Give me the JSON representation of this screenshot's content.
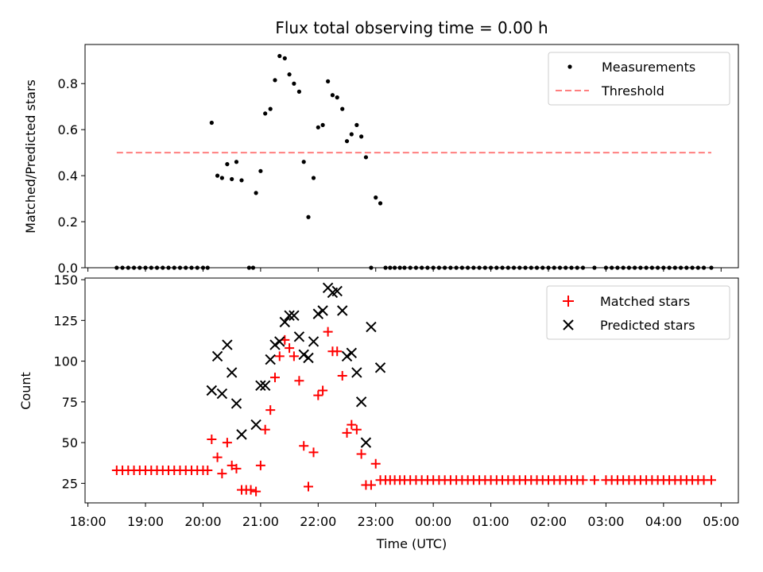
{
  "chart_data": [
    {
      "type": "scatter",
      "title": "Flux total observing time = 0.00 h",
      "xlabel": "",
      "ylabel": "Matched/Predicted stars",
      "ylim": [
        0,
        0.97
      ],
      "yticks": [
        "0.0",
        "0.2",
        "0.4",
        "0.6",
        "0.8"
      ],
      "ytick_values": [
        0,
        0.2,
        0.4,
        0.6,
        0.8
      ],
      "legend_position": "top-right",
      "threshold": {
        "name": "Threshold",
        "value": 0.5,
        "x_start": 18.5,
        "x_end": 28.83,
        "color": "#ff7f7f"
      },
      "series": [
        {
          "name": "Measurements",
          "color": "#000000",
          "x": [
            18.5,
            18.6,
            18.7,
            18.8,
            18.9,
            19.0,
            19.1,
            19.2,
            19.3,
            19.4,
            19.5,
            19.6,
            19.7,
            19.8,
            19.9,
            20.0,
            20.08,
            20.15,
            20.25,
            20.33,
            20.42,
            20.5,
            20.58,
            20.67,
            20.8,
            20.87,
            20.92,
            21.0,
            21.08,
            21.17,
            21.25,
            21.33,
            21.42,
            21.5,
            21.58,
            21.67,
            21.75,
            21.83,
            21.92,
            22.0,
            22.08,
            22.17,
            22.25,
            22.33,
            22.42,
            22.5,
            22.58,
            22.67,
            22.75,
            22.83,
            22.92,
            23.0,
            23.08,
            23.17,
            23.25,
            23.33,
            23.42,
            23.5,
            23.6,
            23.7,
            23.8,
            23.9,
            24.0,
            24.1,
            24.2,
            24.3,
            24.4,
            24.5,
            24.6,
            24.7,
            24.8,
            24.9,
            25.0,
            25.1,
            25.2,
            25.3,
            25.4,
            25.5,
            25.6,
            25.7,
            25.8,
            25.9,
            26.0,
            26.1,
            26.2,
            26.3,
            26.4,
            26.5,
            26.6,
            26.8,
            27.0,
            27.1,
            27.2,
            27.3,
            27.4,
            27.5,
            27.6,
            27.7,
            27.8,
            27.9,
            28.0,
            28.1,
            28.2,
            28.3,
            28.4,
            28.5,
            28.6,
            28.7,
            28.83
          ],
          "y": [
            0,
            0,
            0,
            0,
            0,
            0,
            0,
            0,
            0,
            0,
            0,
            0,
            0,
            0,
            0,
            0,
            0,
            0.63,
            0.4,
            0.39,
            0.45,
            0.385,
            0.46,
            0.38,
            0,
            0,
            0.325,
            0.42,
            0.67,
            0.69,
            0.815,
            0.92,
            0.91,
            0.84,
            0.8,
            0.765,
            0.46,
            0.22,
            0.39,
            0.61,
            0.62,
            0.81,
            0.75,
            0.74,
            0.69,
            0.55,
            0.58,
            0.62,
            0.57,
            0.48,
            0,
            0.305,
            0.28,
            0,
            0,
            0,
            0,
            0,
            0,
            0,
            0,
            0,
            0,
            0,
            0,
            0,
            0,
            0,
            0,
            0,
            0,
            0,
            0,
            0,
            0,
            0,
            0,
            0,
            0,
            0,
            0,
            0,
            0,
            0,
            0,
            0,
            0,
            0,
            0,
            0,
            0,
            0,
            0,
            0,
            0,
            0,
            0,
            0,
            0,
            0,
            0,
            0,
            0,
            0,
            0,
            0,
            0,
            0,
            0
          ]
        }
      ]
    },
    {
      "type": "scatter",
      "title": "",
      "xlabel": "Time (UTC)",
      "ylabel": "Count",
      "xlim": [
        17.95,
        29.3
      ],
      "ylim": [
        13,
        151
      ],
      "yticks": [
        "25",
        "50",
        "75",
        "100",
        "125",
        "150"
      ],
      "ytick_values": [
        25,
        50,
        75,
        100,
        125,
        150
      ],
      "xticks": [
        "18:00",
        "19:00",
        "20:00",
        "21:00",
        "22:00",
        "23:00",
        "00:00",
        "01:00",
        "02:00",
        "03:00",
        "04:00",
        "05:00"
      ],
      "xtick_values": [
        18,
        19,
        20,
        21,
        22,
        23,
        24,
        25,
        26,
        27,
        28,
        29
      ],
      "legend_position": "top-right",
      "series": [
        {
          "name": "Matched stars",
          "color": "#ff0000",
          "marker": "+",
          "x": [
            18.5,
            18.6,
            18.7,
            18.8,
            18.9,
            19.0,
            19.1,
            19.2,
            19.3,
            19.4,
            19.5,
            19.6,
            19.7,
            19.8,
            19.9,
            20.0,
            20.08,
            20.15,
            20.25,
            20.33,
            20.42,
            20.5,
            20.58,
            20.67,
            20.75,
            20.83,
            20.92,
            21.0,
            21.08,
            21.17,
            21.25,
            21.33,
            21.42,
            21.5,
            21.58,
            21.67,
            21.75,
            21.83,
            21.92,
            22.0,
            22.08,
            22.17,
            22.25,
            22.33,
            22.42,
            22.5,
            22.58,
            22.67,
            22.75,
            22.83,
            22.92,
            23.0,
            23.08,
            23.17,
            23.25,
            23.33,
            23.42,
            23.5,
            23.6,
            23.7,
            23.8,
            23.9,
            24.0,
            24.1,
            24.2,
            24.3,
            24.4,
            24.5,
            24.6,
            24.7,
            24.8,
            24.9,
            25.0,
            25.1,
            25.2,
            25.3,
            25.4,
            25.5,
            25.6,
            25.7,
            25.8,
            25.9,
            26.0,
            26.1,
            26.2,
            26.3,
            26.4,
            26.5,
            26.6,
            26.8,
            27.0,
            27.1,
            27.2,
            27.3,
            27.4,
            27.5,
            27.6,
            27.7,
            27.8,
            27.9,
            28.0,
            28.1,
            28.2,
            28.3,
            28.4,
            28.5,
            28.6,
            28.7,
            28.83
          ],
          "y": [
            33,
            33,
            33,
            33,
            33,
            33,
            33,
            33,
            33,
            33,
            33,
            33,
            33,
            33,
            33,
            33,
            33,
            52,
            41,
            31,
            50,
            36,
            34,
            21,
            21,
            21,
            20,
            36,
            58,
            70,
            90,
            103,
            113,
            108,
            103,
            88,
            48,
            23,
            44,
            79,
            82,
            118,
            106,
            106,
            91,
            56,
            61,
            58,
            43,
            24,
            24,
            37,
            27,
            27,
            27,
            27,
            27,
            27,
            27,
            27,
            27,
            27,
            27,
            27,
            27,
            27,
            27,
            27,
            27,
            27,
            27,
            27,
            27,
            27,
            27,
            27,
            27,
            27,
            27,
            27,
            27,
            27,
            27,
            27,
            27,
            27,
            27,
            27,
            27,
            27,
            27,
            27,
            27,
            27,
            27,
            27,
            27,
            27,
            27,
            27,
            27,
            27,
            27,
            27,
            27,
            27,
            27,
            27,
            27
          ]
        },
        {
          "name": "Predicted stars",
          "color": "#000000",
          "marker": "x",
          "x": [
            20.15,
            20.25,
            20.33,
            20.42,
            20.5,
            20.58,
            20.67,
            20.92,
            21.0,
            21.08,
            21.17,
            21.25,
            21.33,
            21.42,
            21.5,
            21.58,
            21.67,
            21.75,
            21.83,
            21.92,
            22.0,
            22.08,
            22.17,
            22.25,
            22.33,
            22.42,
            22.5,
            22.58,
            22.67,
            22.75,
            22.83,
            22.92,
            23.08
          ],
          "y": [
            82,
            103,
            80,
            110,
            93,
            74,
            55,
            61,
            85,
            85,
            101,
            110,
            112,
            124,
            128,
            128,
            115,
            104,
            102,
            112,
            129,
            131,
            145,
            142,
            143,
            131,
            103,
            105,
            93,
            75,
            50,
            121,
            96
          ]
        }
      ]
    }
  ]
}
